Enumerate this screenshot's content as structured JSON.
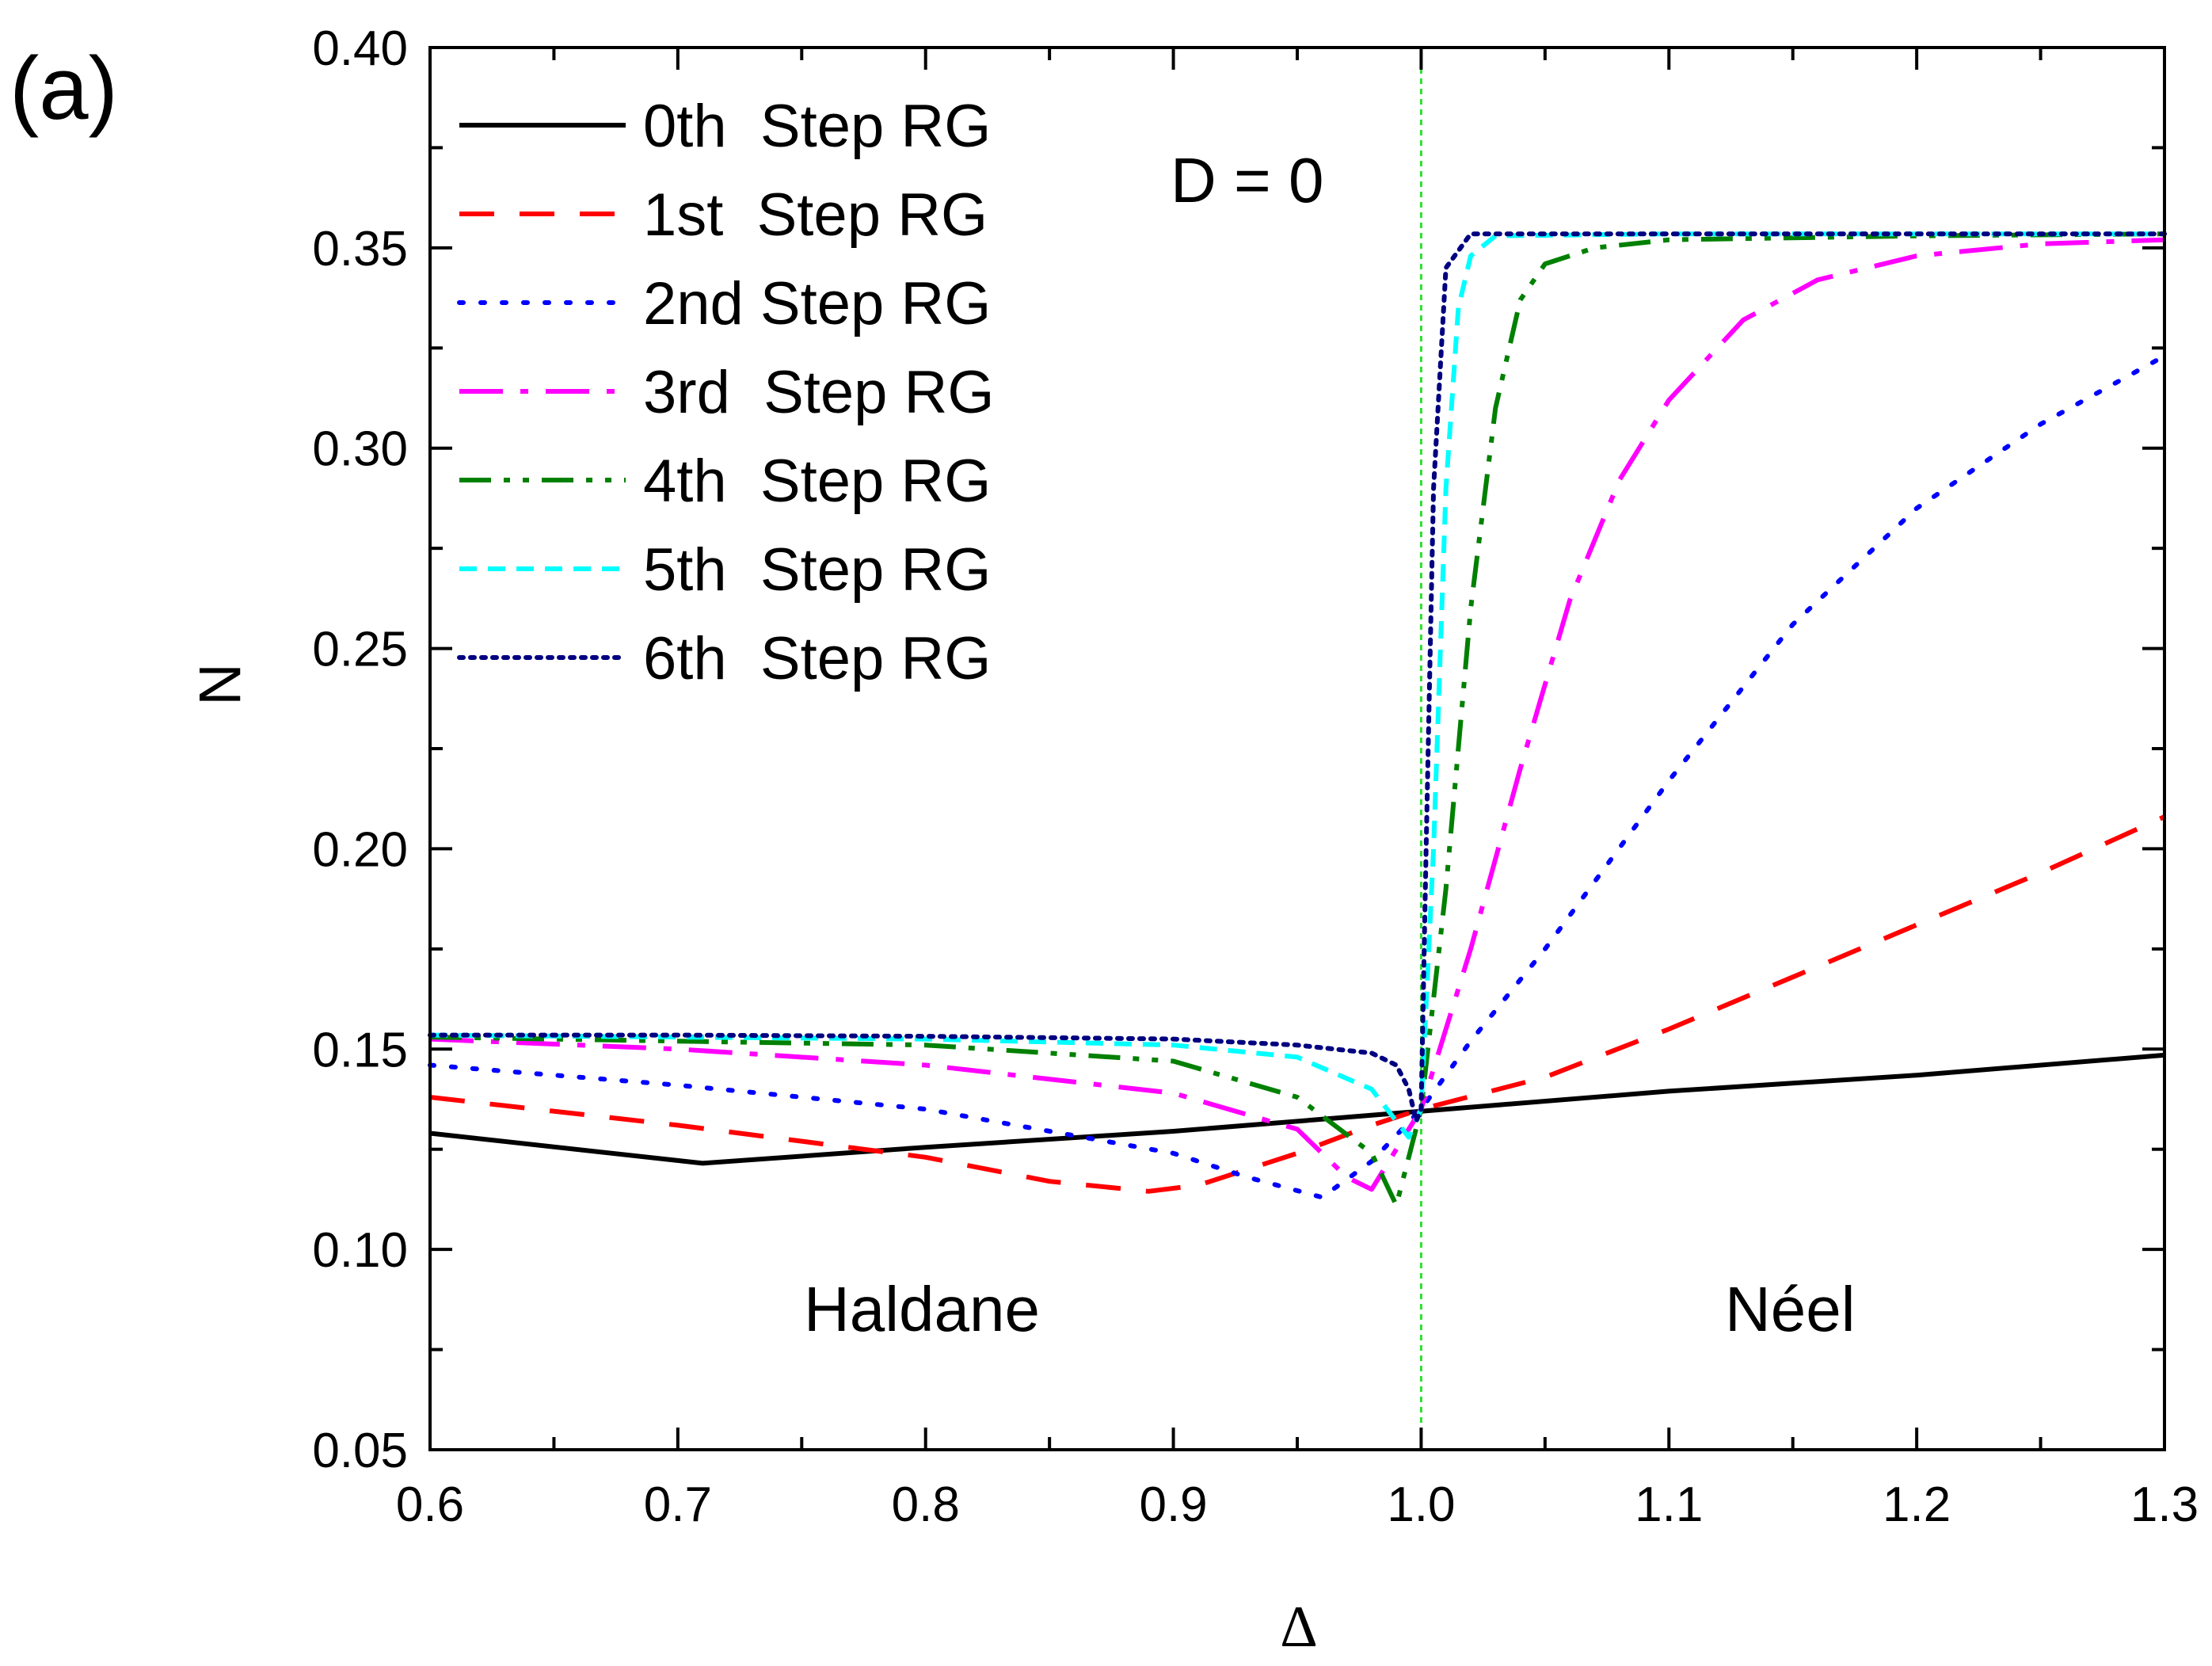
{
  "chart_data": {
    "type": "line",
    "panel_label": "(a)",
    "xlabel": "Δ",
    "ylabel": "N",
    "xlim": [
      0.6,
      1.3
    ],
    "ylim": [
      0.05,
      0.4
    ],
    "x_ticks": [
      "0.6",
      "0.7",
      "0.8",
      "0.9",
      "1.0",
      "1.1",
      "1.2",
      "1.3"
    ],
    "y_ticks": [
      "0.05",
      "0.10",
      "0.15",
      "0.20",
      "0.25",
      "0.30",
      "0.35",
      "0.40"
    ],
    "x_tick_values": [
      0.6,
      0.7,
      0.8,
      0.9,
      1.0,
      1.1,
      1.2,
      1.3
    ],
    "y_tick_values": [
      0.05,
      0.1,
      0.15,
      0.2,
      0.25,
      0.3,
      0.35,
      0.4
    ],
    "legend_position": "top-left",
    "annotations": [
      {
        "text": "D = 0",
        "x": 0.995,
        "y": 0.37
      },
      {
        "text": "Haldane",
        "x": 0.7,
        "y": 0.085
      },
      {
        "text": "Néel",
        "x": 1.14,
        "y": 0.085
      }
    ],
    "reference_lines": [
      {
        "axis": "x",
        "value": 1.0,
        "color": "#33dd33",
        "dash": "dotted"
      }
    ],
    "series": [
      {
        "name": "0th  Step RG",
        "color": "#000000",
        "dash": "solid",
        "x": [
          0.6,
          0.71,
          0.8,
          0.9,
          1.0,
          1.1,
          1.2,
          1.3
        ],
        "y": [
          0.129,
          0.1215,
          0.1255,
          0.1295,
          0.1345,
          0.1395,
          0.1435,
          0.1485
        ]
      },
      {
        "name": "1st  Step RG",
        "color": "#ff0000",
        "dash": "dashed",
        "x": [
          0.6,
          0.7,
          0.8,
          0.85,
          0.89,
          0.91,
          0.95,
          0.98,
          1.0,
          1.05,
          1.1,
          1.15,
          1.2,
          1.25,
          1.3
        ],
        "y": [
          0.138,
          0.131,
          0.123,
          0.117,
          0.1145,
          0.116,
          0.124,
          0.131,
          0.135,
          0.143,
          0.155,
          0.168,
          0.181,
          0.194,
          0.208
        ]
      },
      {
        "name": "2nd Step RG",
        "color": "#0000ff",
        "dash": "dotted",
        "x": [
          0.6,
          0.7,
          0.8,
          0.9,
          0.93,
          0.96,
          0.98,
          1.0,
          1.02,
          1.05,
          1.1,
          1.15,
          1.2,
          1.25,
          1.3
        ],
        "y": [
          0.146,
          0.141,
          0.135,
          0.124,
          0.118,
          0.113,
          0.122,
          0.135,
          0.152,
          0.175,
          0.217,
          0.256,
          0.285,
          0.306,
          0.323
        ]
      },
      {
        "name": "3rd  Step RG",
        "color": "#ff00ff",
        "dash": "dashdot",
        "x": [
          0.6,
          0.7,
          0.8,
          0.9,
          0.95,
          0.97,
          0.98,
          1.0,
          1.02,
          1.04,
          1.06,
          1.08,
          1.1,
          1.13,
          1.16,
          1.2,
          1.25,
          1.3
        ],
        "y": [
          0.1525,
          0.15,
          0.146,
          0.139,
          0.13,
          0.118,
          0.115,
          0.135,
          0.175,
          0.22,
          0.262,
          0.292,
          0.312,
          0.332,
          0.342,
          0.348,
          0.351,
          0.352
        ]
      },
      {
        "name": "4th  Step RG",
        "color": "#008000",
        "dash": "dashdotdot",
        "x": [
          0.6,
          0.7,
          0.8,
          0.9,
          0.95,
          0.98,
          0.99,
          1.0,
          1.01,
          1.02,
          1.03,
          1.04,
          1.05,
          1.07,
          1.1,
          1.2,
          1.3
        ],
        "y": [
          0.153,
          0.152,
          0.151,
          0.147,
          0.138,
          0.124,
          0.111,
          0.135,
          0.19,
          0.26,
          0.31,
          0.337,
          0.346,
          0.35,
          0.352,
          0.353,
          0.3535
        ]
      },
      {
        "name": "5th  Step RG",
        "color": "#00ffff",
        "dash": "shortdash",
        "x": [
          0.6,
          0.7,
          0.8,
          0.9,
          0.95,
          0.98,
          0.99,
          0.995,
          1.0,
          1.005,
          1.01,
          1.015,
          1.02,
          1.03,
          1.1,
          1.2,
          1.3
        ],
        "y": [
          0.1535,
          0.153,
          0.1525,
          0.151,
          0.148,
          0.14,
          0.132,
          0.128,
          0.135,
          0.2,
          0.29,
          0.335,
          0.348,
          0.353,
          0.3535,
          0.3535,
          0.3535
        ]
      },
      {
        "name": "6th  Step RG",
        "color": "#000080",
        "dash": "densedot",
        "x": [
          0.6,
          0.7,
          0.8,
          0.9,
          0.95,
          0.98,
          0.99,
          0.995,
          0.998,
          1.0,
          1.002,
          1.005,
          1.01,
          1.02,
          1.1,
          1.2,
          1.3
        ],
        "y": [
          0.1535,
          0.1535,
          0.1532,
          0.1525,
          0.151,
          0.149,
          0.146,
          0.14,
          0.132,
          0.135,
          0.2,
          0.29,
          0.345,
          0.3535,
          0.3535,
          0.3535,
          0.3535
        ]
      }
    ]
  }
}
